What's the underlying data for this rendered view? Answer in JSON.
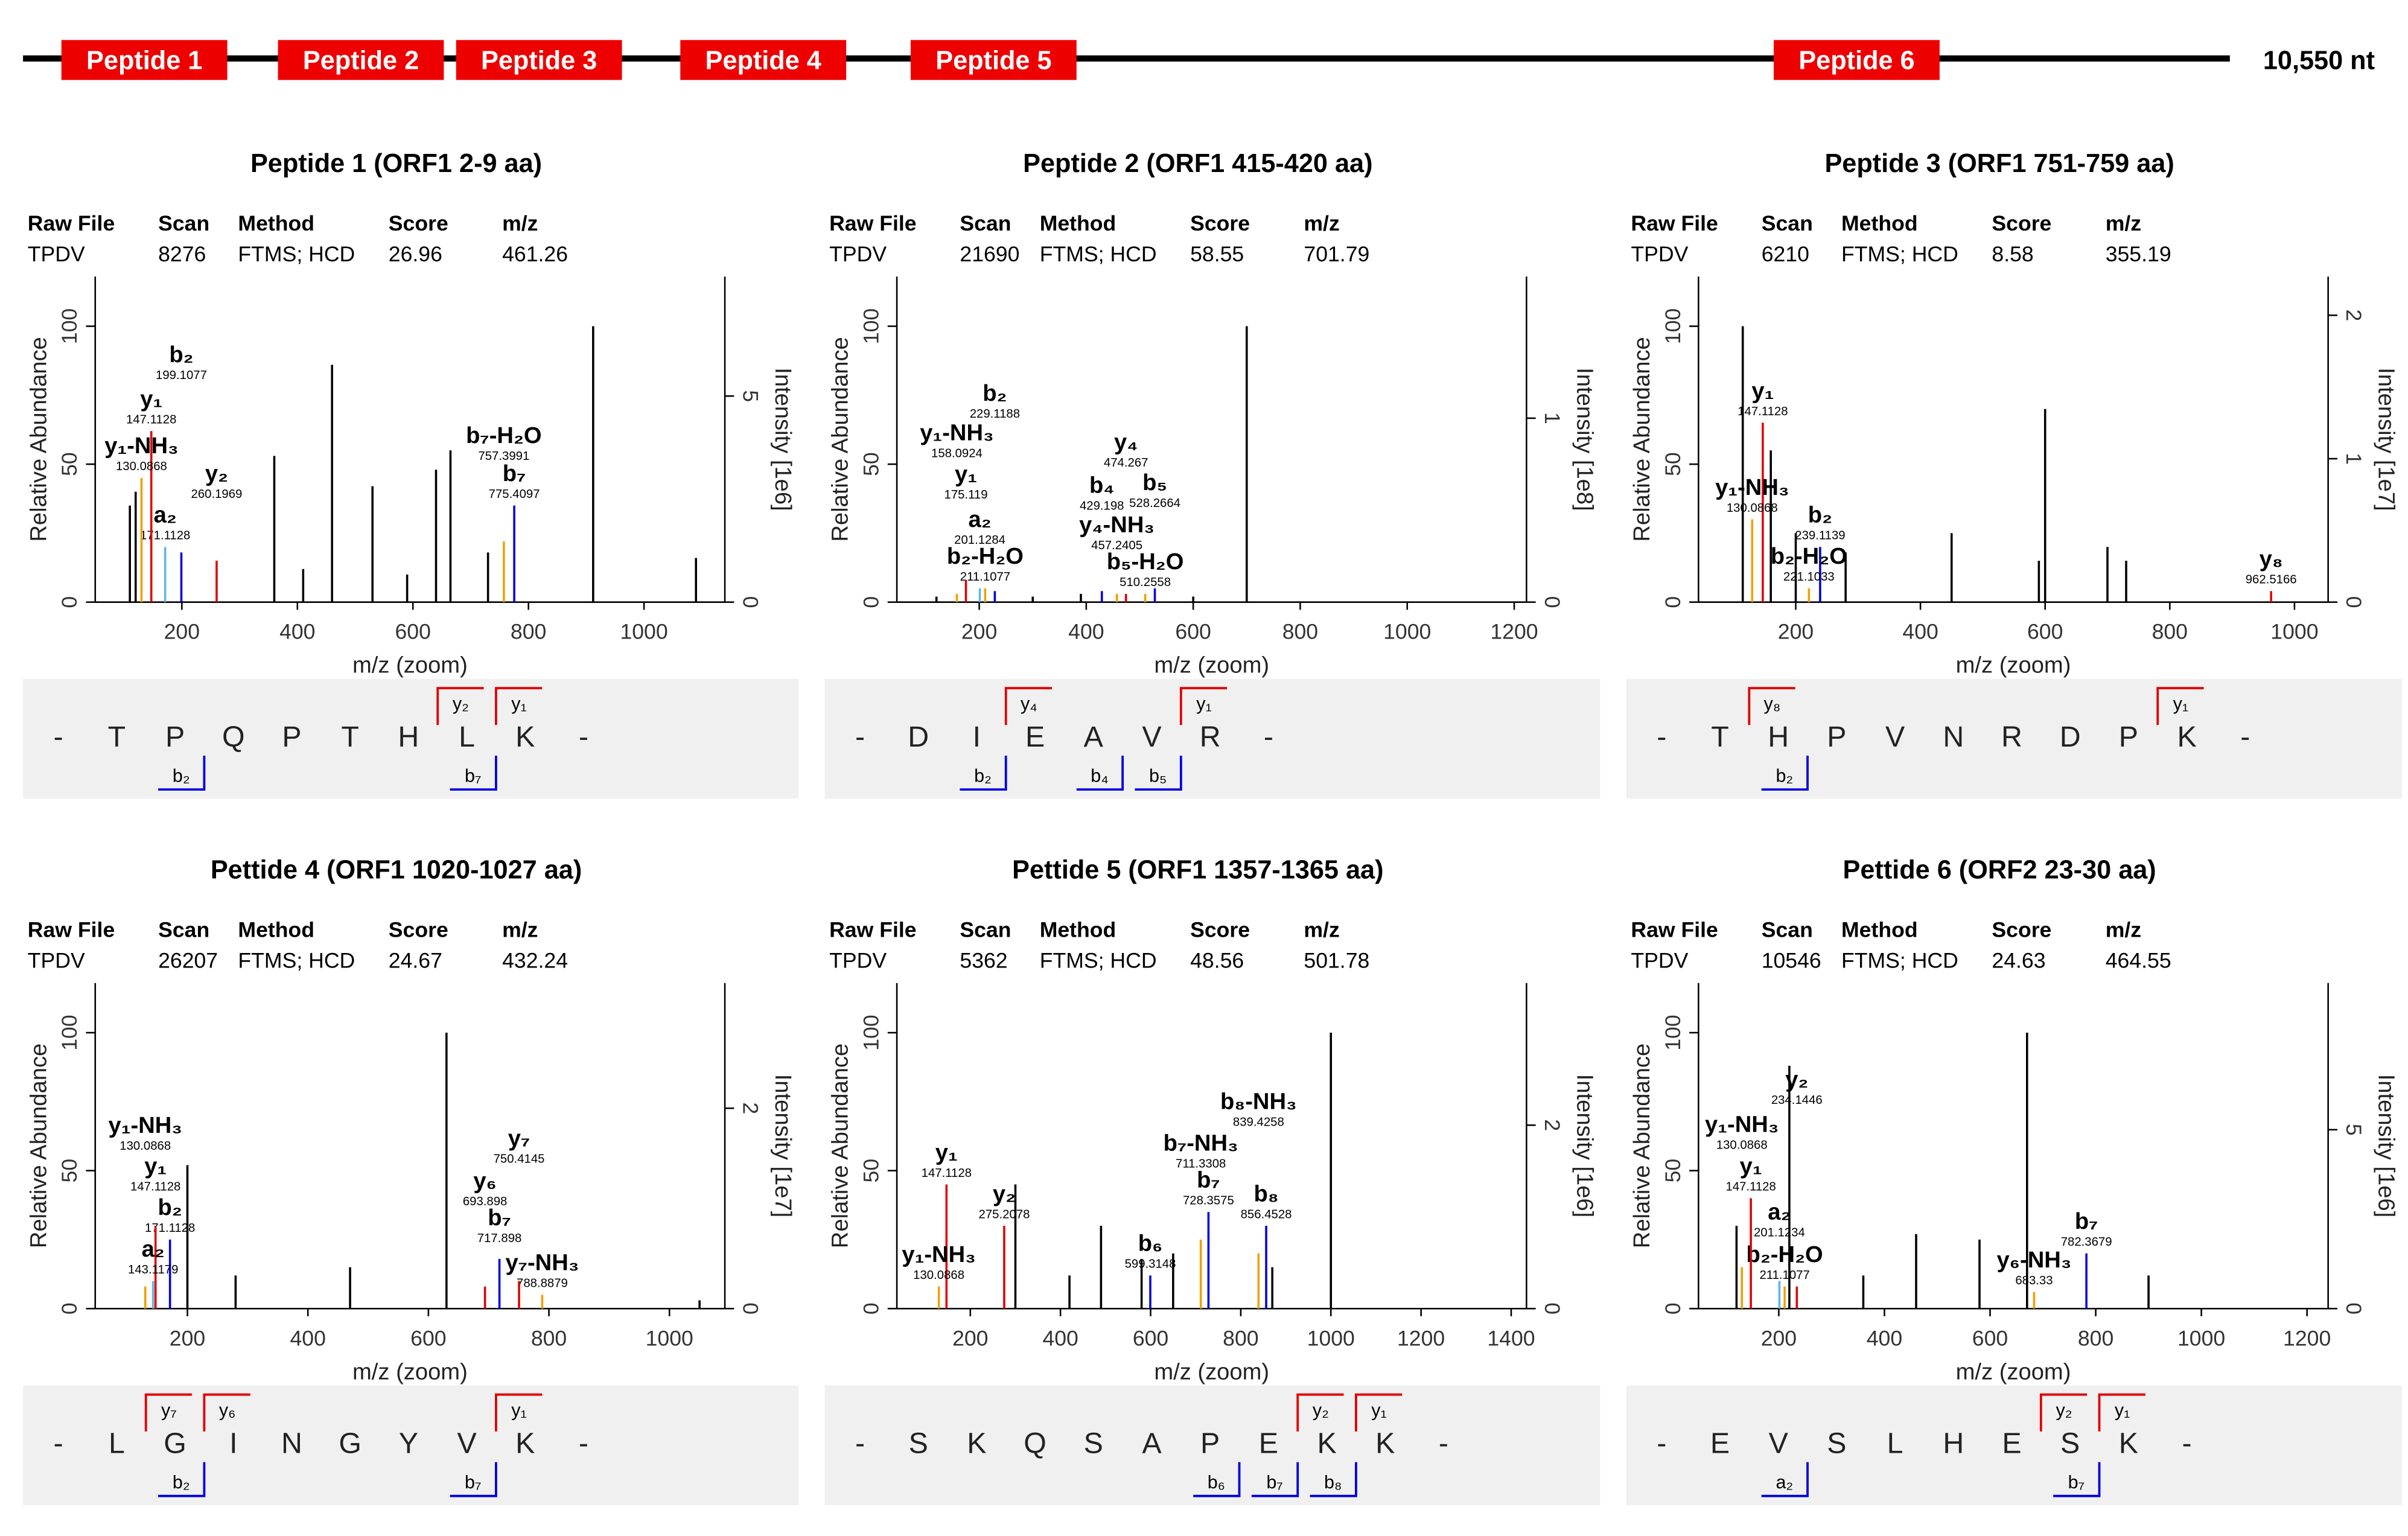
{
  "genome": {
    "peptides": [
      "Peptide 1",
      "Peptide 2",
      "Peptide 3",
      "Peptide 4",
      "Peptide 5",
      "Peptide 6"
    ],
    "length_label": "10,550 nt"
  },
  "spectrum_table_headers": [
    "Raw File",
    "Scan",
    "Method",
    "Score",
    "m/z"
  ],
  "flank": "-",
  "chart_data": [
    {
      "type": "bar",
      "title": "Peptide 1 (ORF1 2-9 aa)",
      "table_row": [
        "TPDV",
        "8276",
        "FTMS; HCD",
        "26.96",
        "461.26"
      ],
      "x_label": "m/z (zoom)",
      "y_label": "Relative Abundance",
      "y2_label": "Intensity [1e6]",
      "xlim": [
        50,
        1140
      ],
      "xticks": [
        200,
        400,
        600,
        800,
        1000
      ],
      "ylim": [
        0,
        118
      ],
      "yticks": [
        0,
        50,
        100
      ],
      "y2lim": [
        0,
        7.9
      ],
      "y2ticks": [
        0,
        5
      ],
      "peaks": {
        "x": [
          110,
          120,
          360,
          410,
          460,
          530,
          590,
          640,
          665,
          730,
          912,
          1090
        ],
        "values": [
          35,
          40,
          53,
          12,
          86,
          42,
          10,
          48,
          55,
          18,
          100,
          16
        ]
      },
      "annotations": [
        {
          "ion": "a₂",
          "mz": 171.1128,
          "value": 20,
          "color": "#5bb8e6"
        },
        {
          "ion": "y₁",
          "mz": 147.1128,
          "value": 62,
          "color": "#e00000"
        },
        {
          "ion": "y₁-NH₃",
          "mz": 130.0868,
          "value": 45,
          "color": "#f0a000"
        },
        {
          "ion": "b₂",
          "mz": 199.1077,
          "value": 18,
          "color": "#0000e0"
        },
        {
          "ion": "y₂",
          "mz": 260.1969,
          "value": 15,
          "color": "#e00000"
        },
        {
          "ion": "b₇",
          "mz": 775.4097,
          "value": 35,
          "color": "#0000e0"
        },
        {
          "ion": "b₇-H₂O",
          "mz": 757.3991,
          "value": 22,
          "color": "#f0a000"
        }
      ],
      "sequence": [
        "T",
        "P",
        "Q",
        "P",
        "T",
        "H",
        "L",
        "K"
      ],
      "n_term_ions": [
        "b₂",
        "b₇"
      ],
      "c_term_ions": [
        "y₂",
        "y₁"
      ]
    },
    {
      "type": "bar",
      "title": "Peptide 2 (ORF1 415-420 aa)",
      "table_row": [
        "TPDV",
        "21690",
        "FTMS; HCD",
        "58.55",
        "701.79"
      ],
      "x_label": "m/z (zoom)",
      "y_label": "Relative Abundance",
      "y2_label": "Intensity [1e8]",
      "xlim": [
        46,
        1223
      ],
      "xticks": [
        200,
        400,
        600,
        800,
        1000,
        1200
      ],
      "ylim": [
        0,
        118
      ],
      "yticks": [
        0,
        50,
        100
      ],
      "y2lim": [
        0,
        1.77
      ],
      "y2ticks": [
        0,
        1
      ],
      "peaks": {
        "x": [
          120,
          300,
          390,
          600,
          700
        ],
        "values": [
          2,
          2,
          3,
          2,
          100
        ]
      },
      "annotations": [
        {
          "ion": "b₂-H₂O",
          "mz": 211.1077,
          "value": 5,
          "color": "#f0a000"
        },
        {
          "ion": "a₂",
          "mz": 201.1284,
          "value": 5,
          "color": "#5bb8e6"
        },
        {
          "ion": "y₁",
          "mz": 175.119,
          "value": 8,
          "color": "#e00000"
        },
        {
          "ion": "y₁-NH₃",
          "mz": 158.0924,
          "value": 3,
          "color": "#f0a000"
        },
        {
          "ion": "b₂",
          "mz": 229.1188,
          "value": 4,
          "color": "#0000e0"
        },
        {
          "ion": "b₅-H₂O",
          "mz": 510.2558,
          "value": 3,
          "color": "#f0a000"
        },
        {
          "ion": "y₄-NH₃",
          "mz": 457.2405,
          "value": 3,
          "color": "#f0a000"
        },
        {
          "ion": "b₄",
          "mz": 429.198,
          "value": 4,
          "color": "#0000e0"
        },
        {
          "ion": "y₄",
          "mz": 474.267,
          "value": 3,
          "color": "#e00000"
        },
        {
          "ion": "b₅",
          "mz": 528.2664,
          "value": 5,
          "color": "#0000e0"
        }
      ],
      "sequence": [
        "D",
        "I",
        "E",
        "A",
        "V",
        "R"
      ],
      "n_term_ions": [
        "b₂",
        "b₄",
        "b₅"
      ],
      "c_term_ions": [
        "y₄",
        "y₁"
      ]
    },
    {
      "type": "bar",
      "title": "Peptide 3 (ORF1 751-759 aa)",
      "table_row": [
        "TPDV",
        "6210",
        "FTMS; HCD",
        "8.58",
        "355.19"
      ],
      "x_label": "m/z (zoom)",
      "y_label": "Relative Abundance",
      "y2_label": "Intensity [1e7]",
      "xlim": [
        44,
        1054
      ],
      "xticks": [
        200,
        400,
        600,
        800,
        1000
      ],
      "ylim": [
        0,
        118
      ],
      "yticks": [
        0,
        50,
        100
      ],
      "y2lim": [
        0,
        2.27
      ],
      "y2ticks": [
        0,
        1,
        2
      ],
      "peaks": {
        "x": [
          115,
          160,
          200,
          280,
          450,
          590,
          600,
          700,
          730
        ],
        "values": [
          100,
          55,
          25,
          18,
          25,
          15,
          70,
          20,
          15
        ]
      },
      "annotations": [
        {
          "ion": "y₁",
          "mz": 147.1128,
          "value": 65,
          "color": "#e00000"
        },
        {
          "ion": "y₁-NH₃",
          "mz": 130.0868,
          "value": 30,
          "color": "#f0a000"
        },
        {
          "ion": "b₂",
          "mz": 239.1139,
          "value": 20,
          "color": "#0000e0"
        },
        {
          "ion": "b₂-H₂O",
          "mz": 221.1033,
          "value": 5,
          "color": "#f0a000"
        },
        {
          "ion": "y₈",
          "mz": 962.5166,
          "value": 4,
          "color": "#e00000"
        }
      ],
      "sequence": [
        "T",
        "H",
        "P",
        "V",
        "N",
        "R",
        "D",
        "P",
        "K"
      ],
      "n_term_ions": [
        "b₂"
      ],
      "c_term_ions": [
        "y₈",
        "y₁"
      ]
    },
    {
      "type": "bar",
      "title": "Pettide 4 (ORF1 1020-1027 aa)",
      "table_row": [
        "TPDV",
        "26207",
        "FTMS; HCD",
        "24.67",
        "432.24"
      ],
      "x_label": "m/z (zoom)",
      "y_label": "Relative Abundance",
      "y2_label": "Intensity [1e7]",
      "xlim": [
        47,
        1092
      ],
      "xticks": [
        200,
        400,
        600,
        800,
        1000
      ],
      "ylim": [
        0,
        118
      ],
      "yticks": [
        0,
        50,
        100
      ],
      "y2lim": [
        0,
        3.25
      ],
      "y2ticks": [
        0,
        2
      ],
      "peaks": {
        "x": [
          200,
          280,
          470,
          630,
          1050
        ],
        "values": [
          52,
          12,
          15,
          100,
          3
        ]
      },
      "annotations": [
        {
          "ion": "b₂",
          "mz": 171.1128,
          "value": 25,
          "color": "#0000e0"
        },
        {
          "ion": "y₁",
          "mz": 147.1128,
          "value": 30,
          "color": "#e00000"
        },
        {
          "ion": "a₂",
          "mz": 143.1179,
          "value": 10,
          "color": "#5bb8e6"
        },
        {
          "ion": "y₁-NH₃",
          "mz": 130.0868,
          "value": 8,
          "color": "#f0a000"
        },
        {
          "ion": "y₇-NH₃",
          "mz": 788.8879,
          "value": 5,
          "color": "#f0a000"
        },
        {
          "ion": "b₇",
          "mz": 717.898,
          "value": 18,
          "color": "#0000e0"
        },
        {
          "ion": "y₆",
          "mz": 693.898,
          "value": 8,
          "color": "#e00000"
        },
        {
          "ion": "y₇",
          "mz": 750.4145,
          "value": 10,
          "color": "#e00000"
        }
      ],
      "sequence": [
        "L",
        "G",
        "I",
        "N",
        "G",
        "Y",
        "V",
        "K"
      ],
      "n_term_ions": [
        "b₂",
        "b₇"
      ],
      "c_term_ions": [
        "y₇",
        "y₆",
        "y₁"
      ]
    },
    {
      "type": "bar",
      "title": "Pettide 5 (ORF1 1357-1365 aa)",
      "table_row": [
        "TPDV",
        "5362",
        "FTMS; HCD",
        "48.56",
        "501.78"
      ],
      "x_label": "m/z (zoom)",
      "y_label": "Relative Abundance",
      "y2_label": "Intensity [1e6]",
      "xlim": [
        37,
        1434
      ],
      "xticks": [
        200,
        400,
        600,
        800,
        1000,
        1200,
        1400
      ],
      "ylim": [
        0,
        118
      ],
      "yticks": [
        0,
        50,
        100
      ],
      "y2lim": [
        0,
        3.55
      ],
      "y2ticks": [
        0,
        2
      ],
      "peaks": {
        "x": [
          300,
          420,
          490,
          580,
          650,
          870,
          1000
        ],
        "values": [
          45,
          12,
          30,
          18,
          20,
          15,
          100
        ]
      },
      "annotations": [
        {
          "ion": "y₁",
          "mz": 147.1128,
          "value": 45,
          "color": "#e00000"
        },
        {
          "ion": "y₂",
          "mz": 275.2078,
          "value": 30,
          "color": "#e00000"
        },
        {
          "ion": "y₁-NH₃",
          "mz": 130.0868,
          "value": 8,
          "color": "#f0a000"
        },
        {
          "ion": "b₆",
          "mz": 599.3148,
          "value": 12,
          "color": "#0000e0"
        },
        {
          "ion": "b₇",
          "mz": 728.3575,
          "value": 35,
          "color": "#0000e0"
        },
        {
          "ion": "b₈",
          "mz": 856.4528,
          "value": 30,
          "color": "#0000e0"
        },
        {
          "ion": "b₇-NH₃",
          "mz": 711.3308,
          "value": 25,
          "color": "#f0a000"
        },
        {
          "ion": "b₈-NH₃",
          "mz": 839.4258,
          "value": 20,
          "color": "#f0a000"
        }
      ],
      "sequence": [
        "S",
        "K",
        "Q",
        "S",
        "A",
        "P",
        "E",
        "K",
        "K"
      ],
      "n_term_ions": [
        "b₆",
        "b₇",
        "b₈"
      ],
      "c_term_ions": [
        "y₂",
        "y₁"
      ]
    },
    {
      "type": "bar",
      "title": "Pettide 6 (ORF2 23-30 aa)",
      "table_row": [
        "TPDV",
        "10546",
        "FTMS; HCD",
        "24.63",
        "464.55"
      ],
      "x_label": "m/z (zoom)",
      "y_label": "Relative Abundance",
      "y2_label": "Intensity [1e6]",
      "xlim": [
        48,
        1240
      ],
      "xticks": [
        200,
        400,
        600,
        800,
        1000,
        1200
      ],
      "ylim": [
        0,
        118
      ],
      "yticks": [
        0,
        50,
        100
      ],
      "y2lim": [
        0,
        9.1
      ],
      "y2ticks": [
        0,
        5
      ],
      "peaks": {
        "x": [
          120,
          220,
          360,
          460,
          580,
          670,
          900
        ],
        "values": [
          30,
          88,
          12,
          27,
          25,
          100,
          12
        ]
      },
      "annotations": [
        {
          "ion": "b₂-H₂O",
          "mz": 211.1077,
          "value": 8,
          "color": "#f0a000"
        },
        {
          "ion": "a₂",
          "mz": 201.1234,
          "value": 10,
          "color": "#5bb8e6"
        },
        {
          "ion": "y₁",
          "mz": 147.1128,
          "value": 40,
          "color": "#e00000"
        },
        {
          "ion": "y₁-NH₃",
          "mz": 130.0868,
          "value": 15,
          "color": "#f0a000"
        },
        {
          "ion": "y₂",
          "mz": 234.1446,
          "value": 8,
          "color": "#e00000"
        },
        {
          "ion": "b₇",
          "mz": 782.3679,
          "value": 20,
          "color": "#0000e0"
        },
        {
          "ion": "y₆-NH₃",
          "mz": 683.33,
          "value": 6,
          "color": "#f0a000"
        }
      ],
      "sequence": [
        "E",
        "V",
        "S",
        "L",
        "H",
        "E",
        "S",
        "K"
      ],
      "n_term_ions": [
        "a₂",
        "b₇"
      ],
      "c_term_ions": [
        "y₂",
        "y₁"
      ]
    }
  ]
}
